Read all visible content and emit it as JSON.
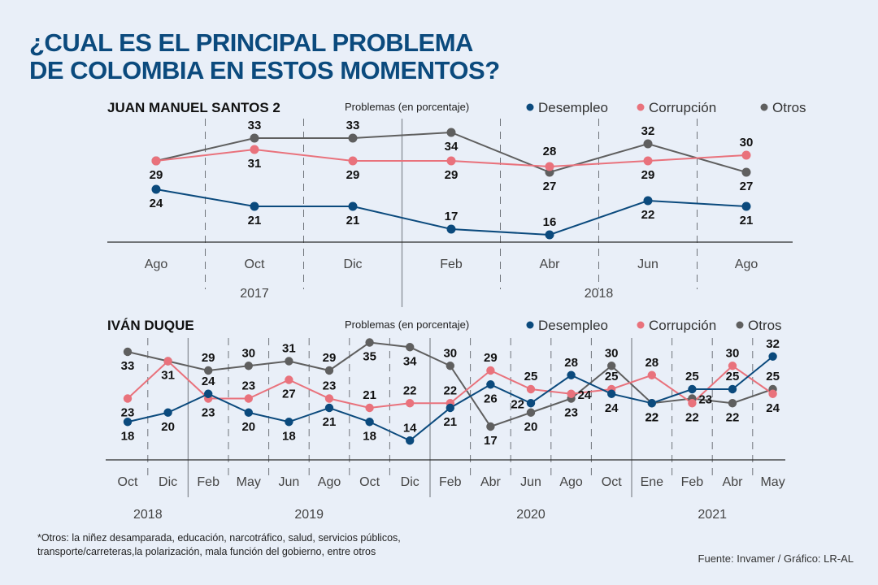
{
  "title": {
    "line1": "¿CUAL ES EL PRINCIPAL PROBLEMA",
    "line2": "DE COLOMBIA EN ESTOS MOMENTOS?"
  },
  "colors": {
    "Desempleo": "#0b4a7d",
    "Corrupción": "#e9727c",
    "Otros": "#5f5f5f",
    "title": "#0b4a7d",
    "background": "#e9eff8"
  },
  "chart_data": [
    {
      "type": "line",
      "title": "JUAN MANUEL SANTOS 2",
      "subtitle": "Problemas (en porcentaje)",
      "legend": [
        "Desempleo",
        "Corrupción",
        "Otros"
      ],
      "legend_position": "top-right",
      "categories": [
        "Ago",
        "Oct",
        "Dic",
        "Feb",
        "Abr",
        "Jun",
        "Ago"
      ],
      "years": [
        {
          "label": "2017",
          "span": [
            0,
            2
          ]
        },
        {
          "label": "2018",
          "span": [
            3,
            6
          ]
        }
      ],
      "series": [
        {
          "name": "Desempleo",
          "values": [
            24,
            21,
            21,
            17,
            16,
            22,
            21
          ]
        },
        {
          "name": "Corrupción",
          "values": [
            29,
            31,
            29,
            29,
            28,
            29,
            30
          ]
        },
        {
          "name": "Otros",
          "values": [
            29,
            33,
            33,
            34,
            27,
            32,
            27
          ]
        }
      ],
      "ylabel": "Problemas (en porcentaje)",
      "grid": false
    },
    {
      "type": "line",
      "title": "IVÁN DUQUE",
      "subtitle": "Problemas (en porcentaje)",
      "legend": [
        "Desempleo",
        "Corrupción",
        "Otros"
      ],
      "legend_position": "top-right",
      "categories": [
        "Oct",
        "Dic",
        "Feb",
        "May",
        "Jun",
        "Ago",
        "Oct",
        "Dic",
        "Feb",
        "Abr",
        "Jun",
        "Ago",
        "Oct",
        "Ene",
        "Feb",
        "Abr",
        "May"
      ],
      "years": [
        {
          "label": "2018",
          "span": [
            0,
            1
          ]
        },
        {
          "label": "2019",
          "span": [
            2,
            7
          ]
        },
        {
          "label": "2020",
          "span": [
            8,
            12
          ]
        },
        {
          "label": "2021",
          "span": [
            13,
            16
          ]
        }
      ],
      "series": [
        {
          "name": "Desempleo",
          "values": [
            18,
            20,
            24,
            20,
            18,
            21,
            18,
            14,
            21,
            26,
            22,
            28,
            24,
            22,
            25,
            25,
            32
          ]
        },
        {
          "name": "Corrupción",
          "values": [
            23,
            31,
            23,
            23,
            27,
            23,
            21,
            22,
            22,
            29,
            25,
            24,
            25,
            28,
            22,
            30,
            24
          ]
        },
        {
          "name": "Otros",
          "values": [
            33,
            31,
            29,
            30,
            31,
            29,
            35,
            34,
            30,
            17,
            20,
            23,
            30,
            22,
            23,
            22,
            25
          ]
        }
      ],
      "ylabel": "Problemas (en porcentaje)",
      "grid": false
    }
  ],
  "footnote": {
    "line1": "*Otros: la niñez desamparada, educación, narcotráfico, salud, servicios públicos,",
    "line2": "transporte/carreteras,la polarización, mala función del gobierno, entre otros"
  },
  "source": "Fuente: Invamer / Gráfico: LR-AL"
}
